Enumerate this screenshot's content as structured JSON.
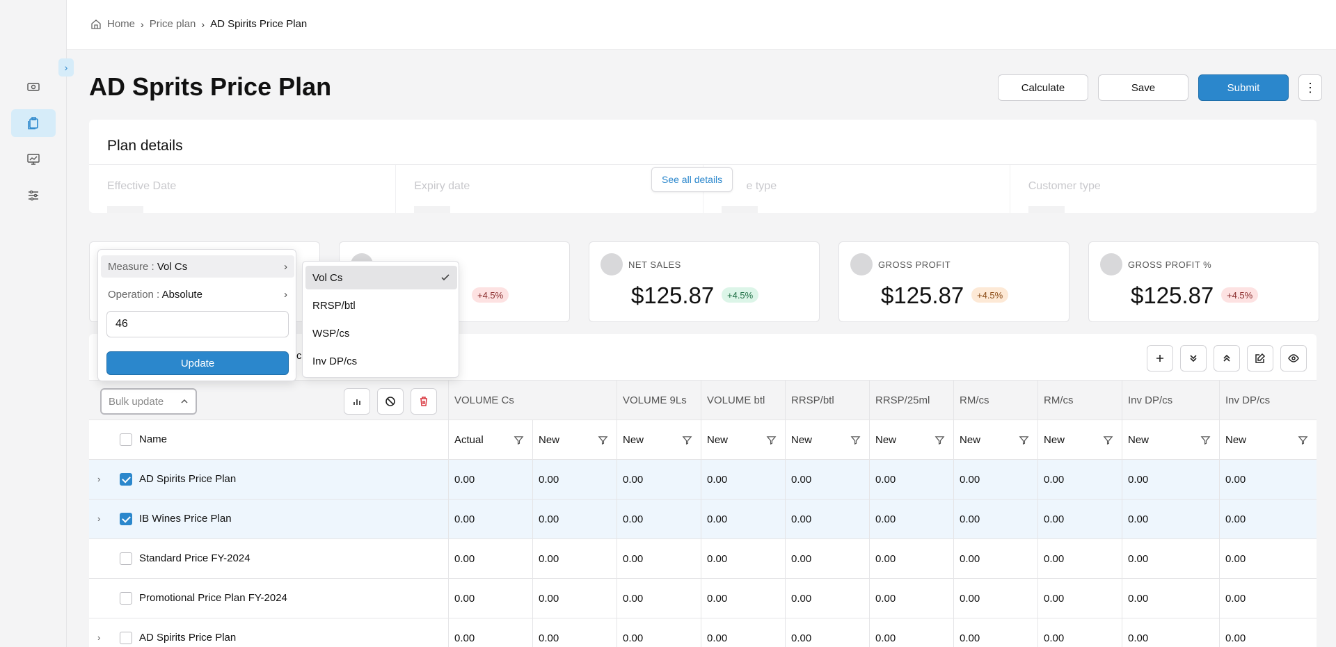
{
  "breadcrumb": {
    "home": "Home",
    "parent": "Price plan",
    "current": "AD Spirits Price Plan"
  },
  "page": {
    "title": "AD Sprits Price Plan"
  },
  "actions": {
    "calculate": "Calculate",
    "save": "Save",
    "submit": "Submit"
  },
  "plan": {
    "title": "Plan details",
    "see_all": "See all details",
    "fields": [
      "Effective Date",
      "Expiry date",
      "e type",
      "Customer type"
    ]
  },
  "kpis": [
    {
      "label": "",
      "value": "",
      "change": "+4.5%"
    },
    {
      "label": "NET SALES",
      "value": "$125.87",
      "change": "+4.5%"
    },
    {
      "label": "GROSS PROFIT",
      "value": "$125.87",
      "change": "+4.5%"
    },
    {
      "label": "GROSS PROFIT %",
      "value": "$125.87",
      "change": "+4.5%"
    }
  ],
  "table": {
    "bulk_update": "Bulk update",
    "top_headers": [
      "VOLUME Cs",
      "VOLUME 9Ls",
      "VOLUME btl",
      "RRSP/btl",
      "RRSP/25ml",
      "RM/cs",
      "RM/cs",
      "Inv DP/cs",
      "Inv DP/cs"
    ],
    "name_header": "Name",
    "sub_headers": [
      "Actual",
      "New",
      "New",
      "New",
      "New",
      "New",
      "New",
      "New",
      "New",
      "New"
    ],
    "rows": [
      {
        "name": "AD Spirits Price Plan",
        "values": [
          "0.00",
          "0.00",
          "0.00",
          "0.00",
          "0.00",
          "0.00",
          "0.00",
          "0.00",
          "0.00",
          "0.00"
        ]
      },
      {
        "name": "IB Wines Price Plan",
        "values": [
          "0.00",
          "0.00",
          "0.00",
          "0.00",
          "0.00",
          "0.00",
          "0.00",
          "0.00",
          "0.00",
          "0.00"
        ]
      },
      {
        "name": "Standard Price FY-2024",
        "values": [
          "0.00",
          "0.00",
          "0.00",
          "0.00",
          "0.00",
          "0.00",
          "0.00",
          "0.00",
          "0.00",
          "0.00"
        ]
      },
      {
        "name": "Promotional Price Plan FY-2024",
        "values": [
          "0.00",
          "0.00",
          "0.00",
          "0.00",
          "0.00",
          "0.00",
          "0.00",
          "0.00",
          "0.00",
          "0.00"
        ]
      },
      {
        "name": "AD Spirits Price Plan",
        "values": [
          "0.00",
          "0.00",
          "0.00",
          "0.00",
          "0.00",
          "0.00",
          "0.00",
          "0.00",
          "0.00",
          "0.00"
        ]
      }
    ]
  },
  "popover": {
    "measure_label": "Measure : ",
    "measure_value": "Vol Cs",
    "operation_label": "Operation : ",
    "operation_value": "Absolute",
    "input_value": "46",
    "update": "Update",
    "hidden_text": "ce"
  },
  "measure_options": [
    "Vol Cs",
    "RRSP/btl",
    "WSP/cs",
    "Inv DP/cs"
  ],
  "colors": {
    "accent": "#2b87cc",
    "selected_row": "#eef6fd"
  }
}
